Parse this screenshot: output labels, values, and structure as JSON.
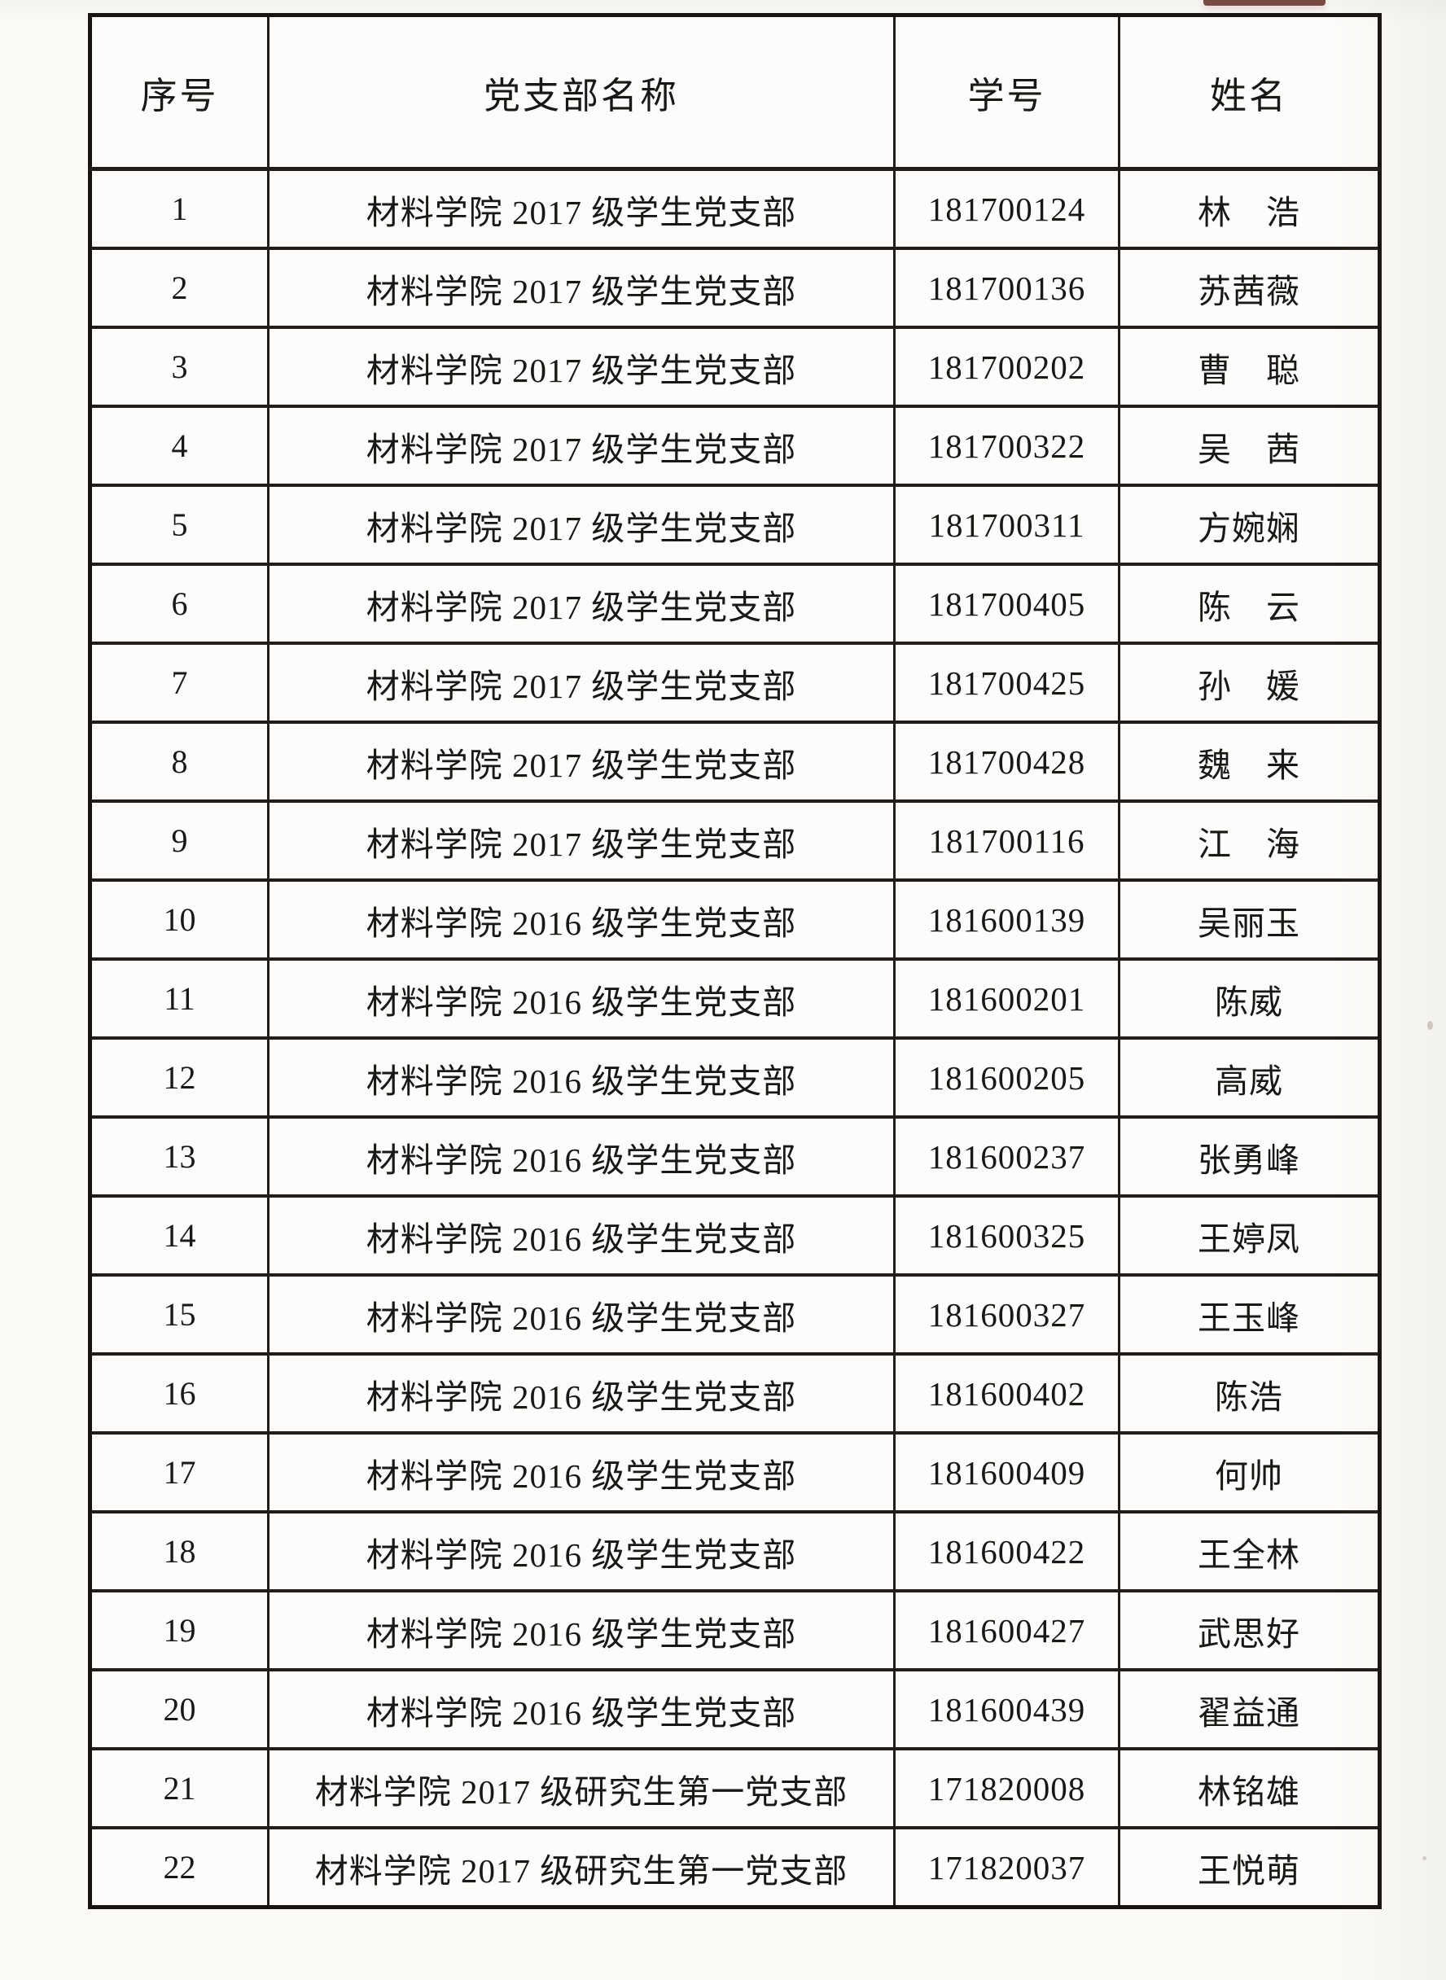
{
  "colors": {
    "scan_mark": "#6f3b31",
    "table_line": "#211d18",
    "paper": "#fbfaf7"
  },
  "table": {
    "headers": [
      "序号",
      "党支部名称",
      "学号",
      "姓名"
    ],
    "rows": [
      {
        "no": "1",
        "branch": "材料学院 2017 级学生党支部",
        "student_id": "181700124",
        "name": "林　浩"
      },
      {
        "no": "2",
        "branch": "材料学院 2017 级学生党支部",
        "student_id": "181700136",
        "name": "苏茜薇"
      },
      {
        "no": "3",
        "branch": "材料学院 2017 级学生党支部",
        "student_id": "181700202",
        "name": "曹　聪"
      },
      {
        "no": "4",
        "branch": "材料学院 2017 级学生党支部",
        "student_id": "181700322",
        "name": "吴　茜"
      },
      {
        "no": "5",
        "branch": "材料学院 2017 级学生党支部",
        "student_id": "181700311",
        "name": "方婉娴"
      },
      {
        "no": "6",
        "branch": "材料学院 2017 级学生党支部",
        "student_id": "181700405",
        "name": "陈　云"
      },
      {
        "no": "7",
        "branch": "材料学院 2017 级学生党支部",
        "student_id": "181700425",
        "name": "孙　媛"
      },
      {
        "no": "8",
        "branch": "材料学院 2017 级学生党支部",
        "student_id": "181700428",
        "name": "魏　来"
      },
      {
        "no": "9",
        "branch": "材料学院 2017 级学生党支部",
        "student_id": "181700116",
        "name": "江　海"
      },
      {
        "no": "10",
        "branch": "材料学院 2016 级学生党支部",
        "student_id": "181600139",
        "name": "吴丽玉"
      },
      {
        "no": "11",
        "branch": "材料学院 2016 级学生党支部",
        "student_id": "181600201",
        "name": "陈威"
      },
      {
        "no": "12",
        "branch": "材料学院 2016 级学生党支部",
        "student_id": "181600205",
        "name": "高威"
      },
      {
        "no": "13",
        "branch": "材料学院 2016 级学生党支部",
        "student_id": "181600237",
        "name": "张勇峰"
      },
      {
        "no": "14",
        "branch": "材料学院 2016 级学生党支部",
        "student_id": "181600325",
        "name": "王婷凤"
      },
      {
        "no": "15",
        "branch": "材料学院 2016 级学生党支部",
        "student_id": "181600327",
        "name": "王玉峰"
      },
      {
        "no": "16",
        "branch": "材料学院 2016 级学生党支部",
        "student_id": "181600402",
        "name": "陈浩"
      },
      {
        "no": "17",
        "branch": "材料学院 2016 级学生党支部",
        "student_id": "181600409",
        "name": "何帅"
      },
      {
        "no": "18",
        "branch": "材料学院 2016 级学生党支部",
        "student_id": "181600422",
        "name": "王全林"
      },
      {
        "no": "19",
        "branch": "材料学院 2016 级学生党支部",
        "student_id": "181600427",
        "name": "武思好"
      },
      {
        "no": "20",
        "branch": "材料学院 2016 级学生党支部",
        "student_id": "181600439",
        "name": "翟益通"
      },
      {
        "no": "21",
        "branch": "材料学院 2017 级研究生第一党支部",
        "student_id": "171820008",
        "name": "林铭雄"
      },
      {
        "no": "22",
        "branch": "材料学院 2017 级研究生第一党支部",
        "student_id": "171820037",
        "name": "王悦萌"
      }
    ]
  }
}
